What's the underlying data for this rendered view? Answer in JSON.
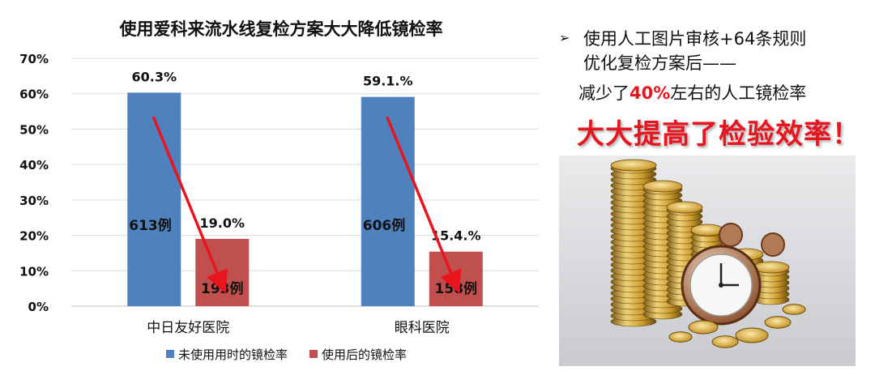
{
  "chart_data": {
    "type": "bar",
    "title": "使用爱科来流水线复检方案大大降低镜检率",
    "categories": [
      "中日友好医院",
      "眼科医院"
    ],
    "series": [
      {
        "name": "未使用用时的镜检率",
        "values": [
          60.3,
          59.1
        ],
        "color": "#4f81bd"
      },
      {
        "name": "使用后的镜检率",
        "values": [
          19.0,
          15.4
        ],
        "color": "#c0504d"
      }
    ],
    "value_labels": [
      [
        "60.3%",
        "59.1.%"
      ],
      [
        "19.0%",
        "15.4.%"
      ]
    ],
    "case_labels": [
      [
        "613例",
        "606例"
      ],
      [
        "193例",
        "158例"
      ]
    ],
    "y_ticks": [
      "0%",
      "10%",
      "20%",
      "30%",
      "40%",
      "50%",
      "60%",
      "70%"
    ],
    "ylim": [
      0,
      70
    ],
    "grid": true,
    "legend_position": "bottom"
  },
  "right_panel": {
    "bullet_line1": "使用人工图片审核+64条规则",
    "bullet_line2": "优化复检方案后——",
    "reduce_prefix": "减少了",
    "reduce_pct": "40%",
    "reduce_suffix": "左右的人工镜检率",
    "headline": "大大提高了检验效率！",
    "bullet_icon": "arrow-bullet-icon",
    "image": "gold-coins-and-alarm-clock"
  }
}
